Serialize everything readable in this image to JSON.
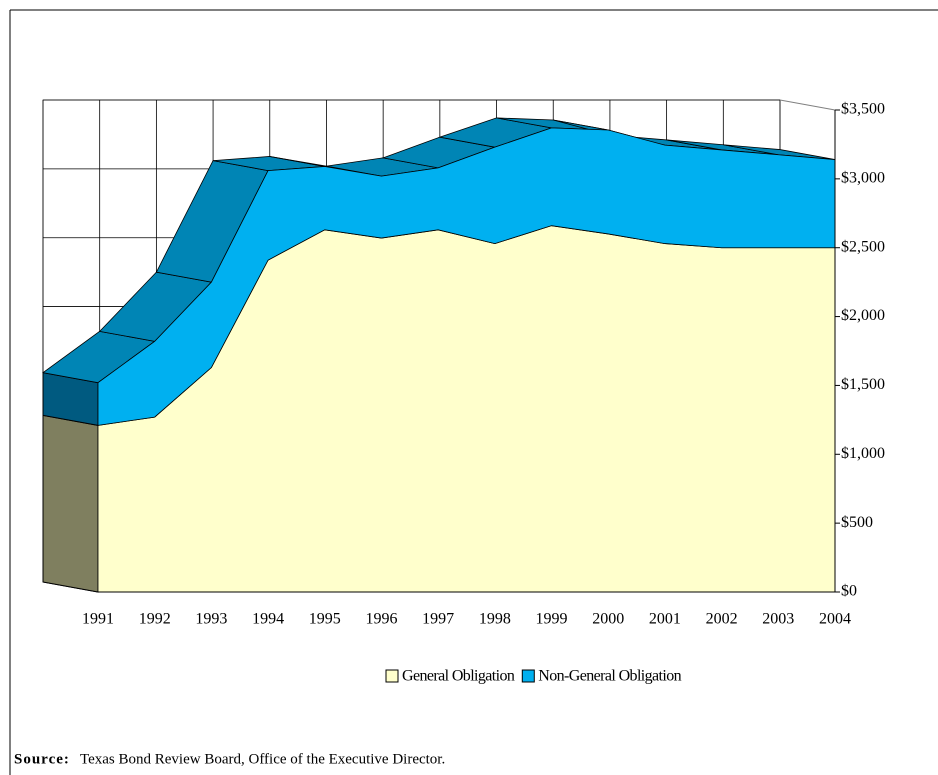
{
  "chart_data": {
    "type": "area3d",
    "categories": [
      "1991",
      "1992",
      "1993",
      "1994",
      "1995",
      "1996",
      "1997",
      "1998",
      "1999",
      "2000",
      "2001",
      "2002",
      "2003",
      "2004"
    ],
    "series": [
      {
        "name": "General Obligation",
        "color": "#ffffcc",
        "values": [
          1210,
          1270,
          1630,
          2410,
          2630,
          2570,
          2630,
          2530,
          2660,
          2600,
          2530,
          2500,
          2500,
          2500
        ]
      },
      {
        "name": "Non-General Obligation",
        "color": "#00b0f0",
        "values": [
          310,
          550,
          620,
          650,
          460,
          450,
          450,
          700,
          710,
          755,
          715,
          710,
          675,
          640
        ]
      }
    ],
    "stacked": true,
    "ylim": [
      0,
      3500
    ],
    "yticks": [
      {
        "value": 0,
        "label": "$0"
      },
      {
        "value": 500,
        "label": "$500"
      },
      {
        "value": 1000,
        "label": "$1,000"
      },
      {
        "value": 1500,
        "label": "$1,500"
      },
      {
        "value": 2000,
        "label": "$2,000"
      },
      {
        "value": 2500,
        "label": "$2,500"
      },
      {
        "value": 3000,
        "label": "$3,000"
      },
      {
        "value": 3500,
        "label": "$3,500"
      }
    ],
    "grid": true,
    "legend": "bottom",
    "source_label": "Source:",
    "source_text": "Texas Bond Review Board, Office of the Executive Director."
  }
}
